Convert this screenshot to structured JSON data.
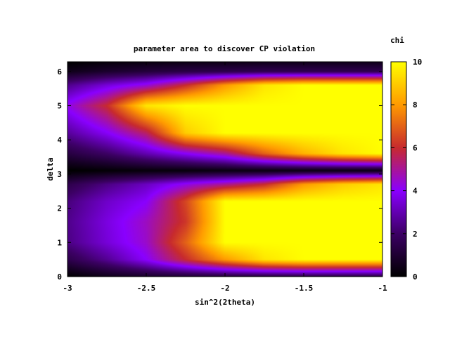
{
  "chart_data": {
    "type": "heatmap",
    "title": "parameter area to discover CP violation",
    "xlabel": "sin^2(2theta)",
    "ylabel": "delta",
    "colorbar_label": "chi",
    "xlim": [
      -3,
      -1
    ],
    "ylim": [
      0,
      6.283
    ],
    "x_ticks": [
      -3,
      -2.5,
      -2,
      -1.5,
      -1
    ],
    "x_tick_labels": [
      "-3",
      "-2.5",
      "-2",
      "-1.5",
      "-1"
    ],
    "y_ticks": [
      0,
      1,
      2,
      3,
      4,
      5,
      6
    ],
    "y_tick_labels": [
      "0",
      "1",
      "2",
      "3",
      "4",
      "5",
      "6"
    ],
    "color_range": [
      0,
      10
    ],
    "color_ticks": [
      0,
      2,
      4,
      6,
      8,
      10
    ],
    "color_tick_labels": [
      "0",
      "2",
      "4",
      "6",
      "8",
      "10"
    ],
    "colormap": [
      "#000000",
      "#3c0064",
      "#8a00ff",
      "#c72a2e",
      "#ff9a00",
      "#ffff00"
    ],
    "grid_x": [
      -3.0,
      -2.75,
      -2.5,
      -2.25,
      -2.0,
      -1.75,
      -1.5,
      -1.25,
      -1.0
    ],
    "grid_y": [
      0.0,
      0.5,
      1.0,
      1.6,
      2.2,
      2.7,
      3.1,
      3.6,
      4.2,
      5.0,
      5.6,
      6.0,
      6.283
    ],
    "z": [
      [
        0.0,
        0.5,
        0.8,
        1.0,
        1.1,
        1.2,
        1.3,
        1.3,
        1.3
      ],
      [
        1.5,
        2.6,
        4.0,
        6.0,
        8.0,
        9.5,
        10.0,
        10.0,
        10.0
      ],
      [
        2.4,
        3.5,
        4.5,
        7.0,
        10.0,
        10.0,
        10.0,
        10.0,
        10.0
      ],
      [
        2.5,
        3.6,
        4.6,
        6.2,
        10.0,
        10.0,
        10.0,
        10.0,
        10.0
      ],
      [
        2.3,
        3.3,
        4.0,
        6.5,
        10.0,
        10.0,
        10.0,
        10.0,
        10.0
      ],
      [
        1.5,
        2.4,
        3.2,
        4.2,
        5.0,
        6.0,
        8.0,
        9.0,
        9.5
      ],
      [
        0.0,
        0.1,
        0.2,
        0.2,
        0.3,
        0.3,
        0.3,
        0.3,
        0.3
      ],
      [
        1.3,
        2.0,
        3.0,
        4.0,
        5.0,
        7.0,
        8.5,
        9.5,
        10.0
      ],
      [
        2.7,
        3.9,
        5.5,
        9.0,
        10.0,
        10.0,
        10.0,
        10.0,
        10.0
      ],
      [
        4.2,
        6.0,
        9.5,
        10.0,
        10.0,
        10.0,
        10.0,
        10.0,
        10.0
      ],
      [
        2.5,
        3.5,
        4.3,
        6.0,
        8.0,
        9.5,
        10.0,
        10.0,
        10.0
      ],
      [
        0.5,
        0.9,
        1.2,
        1.4,
        1.5,
        1.6,
        1.6,
        1.6,
        1.6
      ],
      [
        0.0,
        0.2,
        0.3,
        0.4,
        0.4,
        0.5,
        0.5,
        0.5,
        0.5
      ]
    ]
  }
}
